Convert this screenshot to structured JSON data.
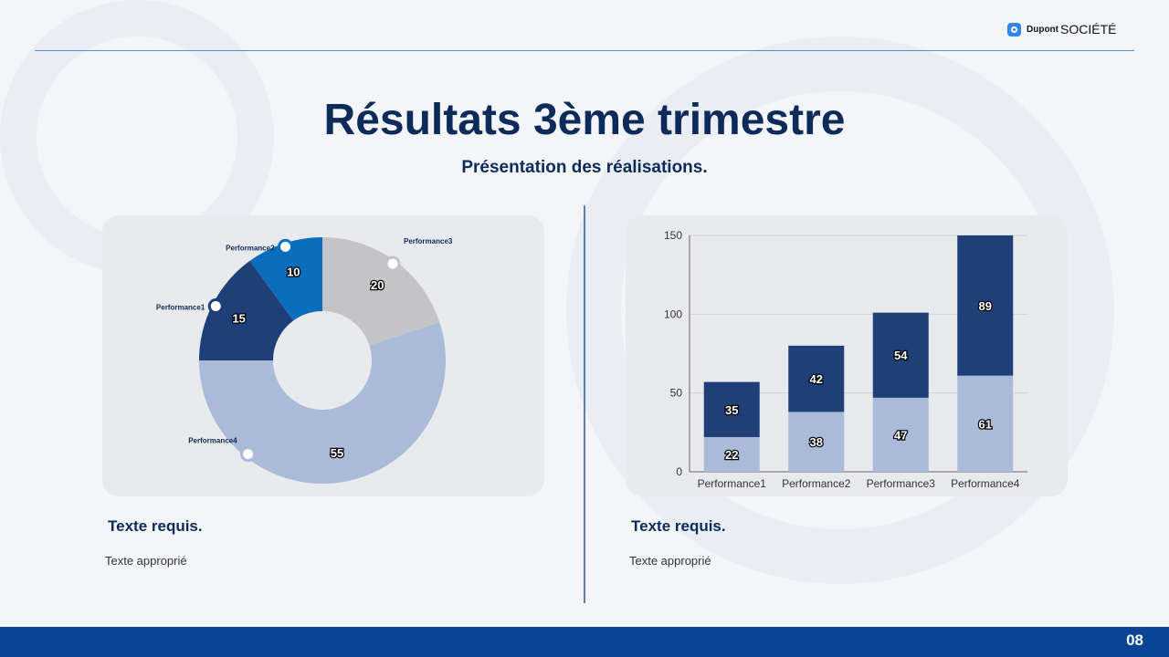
{
  "brand": {
    "name_small": "Dupont",
    "name_large": "SOCIÉTÉ",
    "icon": "logo-circle-icon"
  },
  "header": {
    "title": "Résultats 3ème trimestre",
    "subtitle": "Présentation des réalisations."
  },
  "left": {
    "heading": "Texte requis.",
    "text": "Texte approprié"
  },
  "right": {
    "heading": "Texte requis.",
    "text": "Texte approprié"
  },
  "footer": {
    "page": "08",
    "color": "#0a4595"
  },
  "chart_data": [
    {
      "type": "pie",
      "donut": true,
      "start": "top",
      "direction": "clockwise",
      "slices": [
        {
          "label": "Performance3",
          "value": 20,
          "color": "#c4c4c6"
        },
        {
          "label": "Performance4",
          "value": 55,
          "color": "#a9bbd9"
        },
        {
          "label": "Performance1",
          "value": 15,
          "color": "#1f3f78"
        },
        {
          "label": "Performance2",
          "value": 10,
          "color": "#0a6ebd"
        }
      ]
    },
    {
      "type": "bar",
      "stacked": true,
      "categories": [
        "Performance1",
        "Performance2",
        "Performance3",
        "Performance4"
      ],
      "series": [
        {
          "values": [
            22,
            38,
            47,
            61
          ],
          "color": "#a9bbd9"
        },
        {
          "values": [
            35,
            42,
            54,
            89
          ],
          "color": "#1f3f78"
        }
      ],
      "ylim": [
        0,
        150
      ],
      "yticks": [
        0,
        50,
        100,
        150
      ],
      "grid": true
    }
  ]
}
